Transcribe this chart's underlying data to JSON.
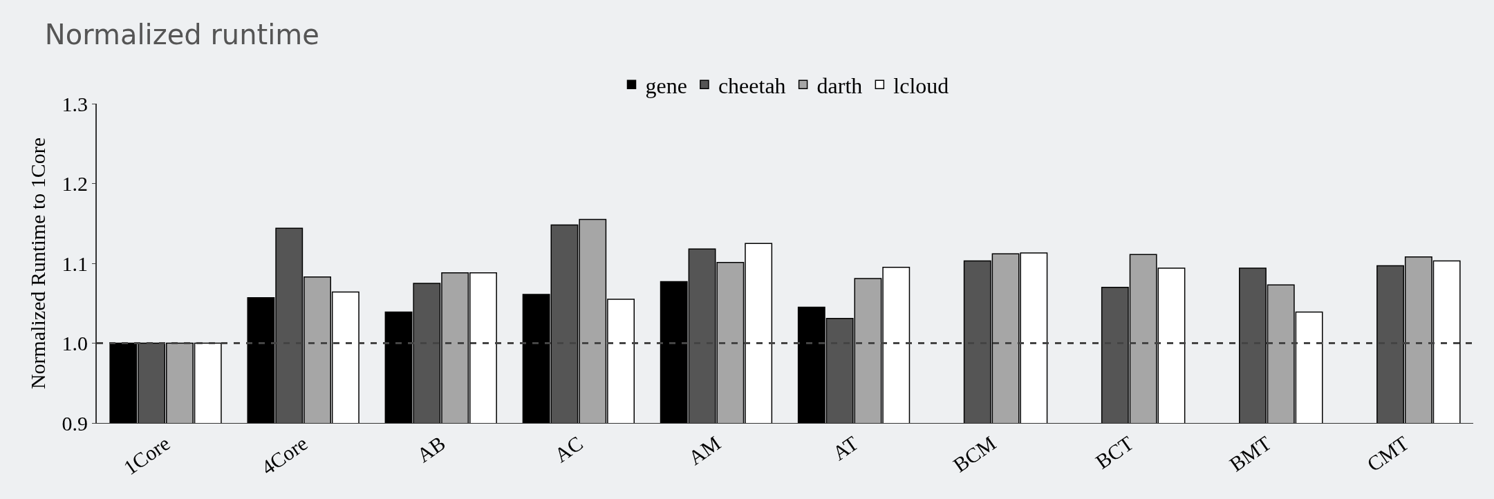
{
  "chart_data": {
    "type": "bar",
    "title": "Normalized runtime",
    "ylabel": "Normalized Runtime to 1Core",
    "categories": [
      "1Core",
      "4Core",
      "AB",
      "AC",
      "AM",
      "AT",
      "BCM",
      "BCT",
      "BMT",
      "CMT"
    ],
    "series": [
      {
        "name": "gene",
        "color": "#000000",
        "values": [
          1.0,
          1.057,
          1.039,
          1.061,
          1.077,
          1.045,
          null,
          null,
          null,
          null
        ]
      },
      {
        "name": "cheetah",
        "color": "#555555",
        "values": [
          1.0,
          1.144,
          1.075,
          1.148,
          1.118,
          1.031,
          1.103,
          1.07,
          1.094,
          1.097
        ]
      },
      {
        "name": "darth",
        "color": "#a6a6a6",
        "values": [
          1.0,
          1.083,
          1.088,
          1.155,
          1.101,
          1.081,
          1.112,
          1.111,
          1.073,
          1.108
        ]
      },
      {
        "name": "lcloud",
        "color": "#ffffff",
        "values": [
          1.0,
          1.064,
          1.088,
          1.055,
          1.125,
          1.095,
          1.113,
          1.094,
          1.039,
          1.103
        ]
      }
    ],
    "ylim": [
      0.9,
      1.3
    ],
    "yticks": [
      {
        "value": 0.9,
        "label": "0.9"
      },
      {
        "value": 1.0,
        "label": "1.0"
      },
      {
        "value": 1.1,
        "label": "1.1"
      },
      {
        "value": 1.2,
        "label": "1.2"
      },
      {
        "value": 1.3,
        "label": "1.3"
      }
    ],
    "ref_lines": [
      {
        "axis": "y",
        "value": 1.0,
        "color": "#444444",
        "line_style": "dashed"
      }
    ],
    "legend": "top",
    "grid": false
  }
}
